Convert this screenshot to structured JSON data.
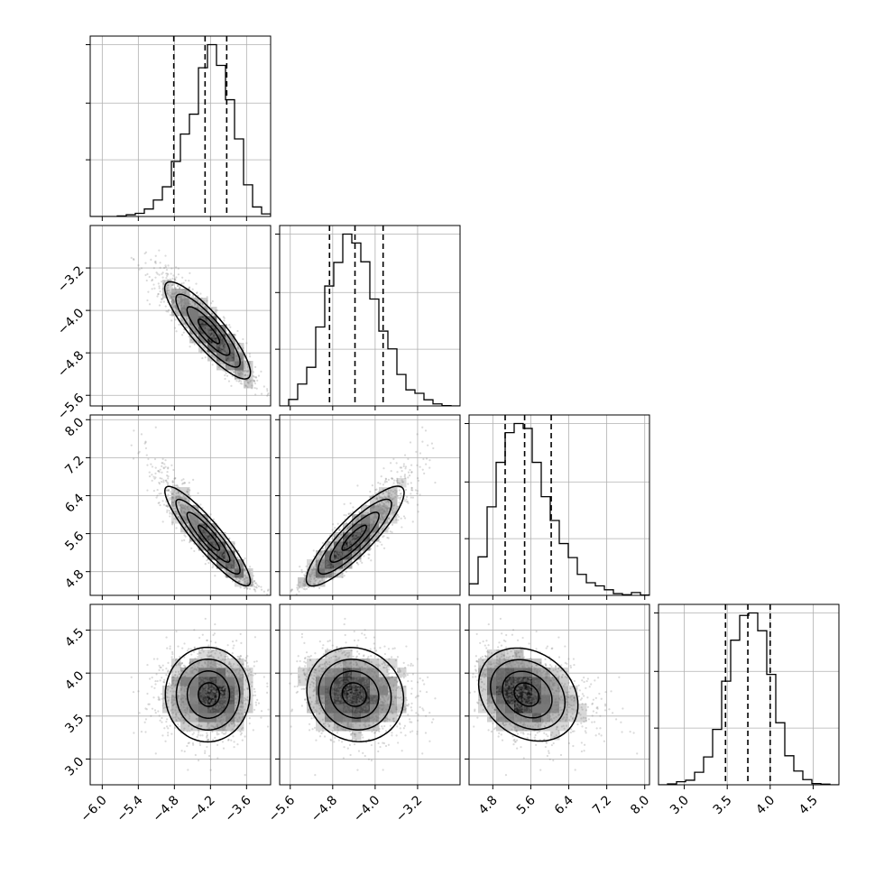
{
  "chart_data": {
    "type": "corner",
    "title": "",
    "grid": true,
    "parameters": [
      {
        "index": 0,
        "center": -4.22,
        "sigma": 0.37,
        "skew": -0.35,
        "range": [
          -6.2,
          -3.2
        ],
        "ticks": [
          -6.0,
          -5.4,
          -4.8,
          -4.2,
          -3.6
        ],
        "tick_labels": [
          "−6.0",
          "−5.4",
          "−4.8",
          "−4.2",
          "−3.6"
        ],
        "quantiles": [
          -4.81,
          -4.29,
          -3.93
        ]
      },
      {
        "index": 1,
        "center": -4.4,
        "sigma": 0.48,
        "skew": 0.3,
        "range": [
          -5.8,
          -2.4
        ],
        "ticks": [
          -5.6,
          -4.8,
          -4.0,
          -3.2
        ],
        "tick_labels": [
          "−5.6",
          "−4.8",
          "−4.0",
          "−3.2"
        ],
        "quantiles": [
          -4.86,
          -4.38,
          -3.85
        ]
      },
      {
        "index": 2,
        "center": 5.5,
        "sigma": 0.55,
        "skew": 0.6,
        "range": [
          4.3,
          8.1
        ],
        "ticks": [
          4.8,
          5.6,
          6.4,
          7.2,
          8.0
        ],
        "tick_labels": [
          "4.8",
          "5.6",
          "6.4",
          "7.2",
          "8.0"
        ],
        "quantiles": [
          5.06,
          5.47,
          6.03
        ]
      },
      {
        "index": 3,
        "center": 3.75,
        "sigma": 0.25,
        "skew": 0.0,
        "range": [
          2.7,
          4.8
        ],
        "ticks": [
          3.0,
          3.5,
          4.0,
          4.5
        ],
        "tick_labels": [
          "3.0",
          "3.5",
          "4.0",
          "4.5"
        ],
        "quantiles": [
          3.48,
          3.74,
          4.0
        ]
      }
    ],
    "correlations": [
      [
        1.0,
        -0.9,
        -0.93,
        0.0
      ],
      [
        -0.9,
        1.0,
        0.9,
        -0.12
      ],
      [
        -0.93,
        0.9,
        1.0,
        -0.28
      ],
      [
        0.0,
        -0.12,
        -0.28,
        1.0
      ]
    ],
    "hist_bins": 20,
    "contour_levels": [
      0.5,
      1.0,
      1.5,
      2.0
    ]
  }
}
